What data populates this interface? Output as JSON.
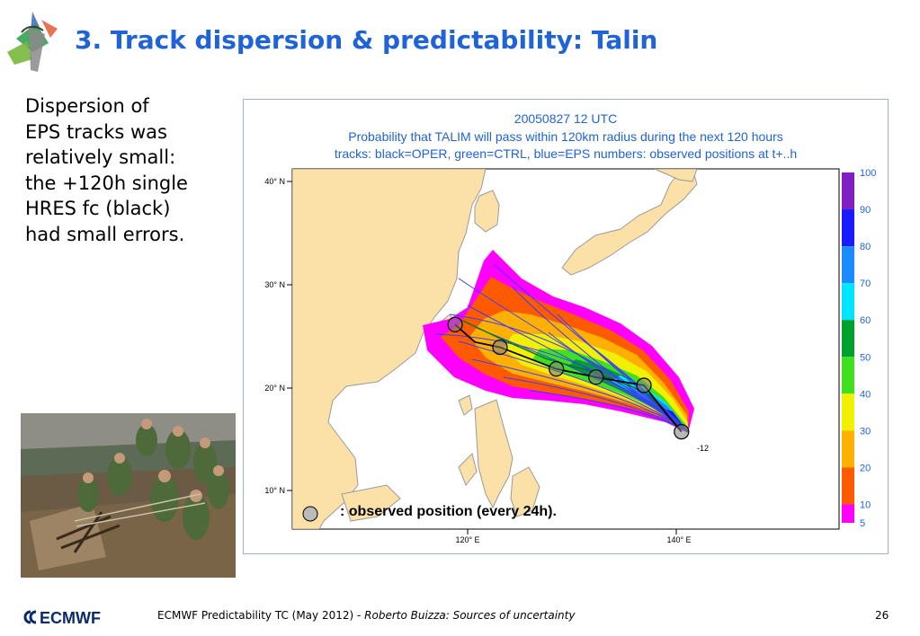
{
  "slide": {
    "title": "3. Track dispersion & predictability: Talin",
    "body_lines": [
      "Dispersion of",
      "EPS tracks was",
      "relatively small:",
      "the +120h single",
      "HRES fc (black)",
      "had small errors."
    ],
    "footer": {
      "logo_text": "ECMWF",
      "meeting": "ECMWF Predictability TC (May 2012) - ",
      "author": "Roberto Buizza: Sources of uncertainty",
      "page": "26"
    }
  },
  "figure": {
    "header_lines": [
      "20050827 12 UTC",
      "Probability that TALIM will pass within 120km radius during the next 120 hours",
      "tracks: black=OPER, green=CTRL, blue=EPS numbers: observed positions at t+..h"
    ],
    "observed_note": ": observed position (every 24h).",
    "track_number_label": "-12",
    "colors": {
      "title_text": "#1f63d6",
      "map_land": "#fbe0a8",
      "map_sea": "#ffffff",
      "coast": "#9a9a9a"
    }
  },
  "chart_data": {
    "type": "map",
    "lat_labels": [
      "40° N",
      "30° N",
      "20° N",
      "10° N"
    ],
    "lon_labels": [
      "120° E",
      "140° E"
    ],
    "lat_ticks": [
      40,
      30,
      20,
      10
    ],
    "lon_ticks": [
      120,
      140
    ],
    "colorbar": {
      "ticks": [
        "100",
        "90",
        "80",
        "70",
        "60",
        "50",
        "40",
        "30",
        "20",
        "10",
        "5"
      ],
      "bins": [
        {
          "from": 90,
          "to": 100,
          "color": "#8020c0"
        },
        {
          "from": 80,
          "to": 90,
          "color": "#1a1aff"
        },
        {
          "from": 70,
          "to": 80,
          "color": "#1a8cff"
        },
        {
          "from": 60,
          "to": 70,
          "color": "#00e5ff"
        },
        {
          "from": 50,
          "to": 60,
          "color": "#00a030"
        },
        {
          "from": 40,
          "to": 50,
          "color": "#40e020"
        },
        {
          "from": 30,
          "to": 40,
          "color": "#f0f000"
        },
        {
          "from": 20,
          "to": 30,
          "color": "#ffb000"
        },
        {
          "from": 10,
          "to": 20,
          "color": "#ff5a00"
        },
        {
          "from": 5,
          "to": 10,
          "color": "#ff00ff"
        }
      ]
    },
    "observed_positions": [
      {
        "lon": 140.5,
        "lat": 15.7
      },
      {
        "lon": 136.9,
        "lat": 20.2
      },
      {
        "lon": 132.3,
        "lat": 21.0
      },
      {
        "lon": 128.5,
        "lat": 21.8
      },
      {
        "lon": 123.1,
        "lat": 23.9
      },
      {
        "lon": 118.8,
        "lat": 26.1
      }
    ],
    "oper_track": [
      {
        "lon": 140.5,
        "lat": 15.7
      },
      {
        "lon": 139.0,
        "lat": 17.5
      },
      {
        "lon": 136.9,
        "lat": 20.2
      },
      {
        "lon": 132.3,
        "lat": 21.0
      },
      {
        "lon": 128.5,
        "lat": 21.8
      },
      {
        "lon": 123.1,
        "lat": 23.9
      },
      {
        "lon": 120.7,
        "lat": 24.4
      },
      {
        "lon": 118.8,
        "lat": 26.1
      }
    ],
    "ctrl_track": [
      {
        "lon": 140.5,
        "lat": 15.9
      },
      {
        "lon": 137.0,
        "lat": 19.6
      },
      {
        "lon": 132.0,
        "lat": 21.5
      },
      {
        "lon": 127.5,
        "lat": 22.8
      },
      {
        "lon": 123.0,
        "lat": 24.8
      },
      {
        "lon": 119.5,
        "lat": 26.5
      }
    ]
  }
}
